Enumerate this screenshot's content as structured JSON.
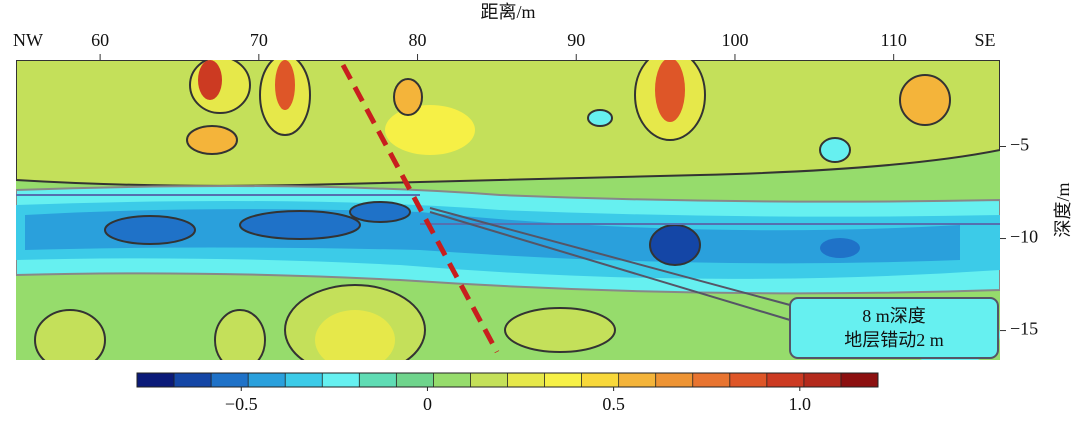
{
  "chart_data": {
    "type": "contour",
    "xlabel": "距离/m",
    "ylabel": "深度/m",
    "left_label": "NW",
    "right_label": "SE",
    "xlim": [
      54.7,
      116.7
    ],
    "xticks": [
      60,
      70,
      80,
      90,
      100,
      110
    ],
    "ylim": [
      -0.3,
      -16.6
    ],
    "yticks": [
      {
        "value": -5,
        "label": "−5"
      },
      {
        "value": -10,
        "label": "−10"
      },
      {
        "value": -15,
        "label": "−15"
      }
    ],
    "annotation": [
      "8 m深度",
      "地层错动2 m"
    ],
    "colorbar": {
      "lim": [
        -0.78,
        1.21
      ],
      "ticks": [
        {
          "value": -0.5,
          "label": "−0.5"
        },
        0,
        0.5,
        {
          "value": 1.0,
          "label": "1.0"
        }
      ],
      "colors": [
        "#0b1a78",
        "#1446a6",
        "#1f72c8",
        "#2aa0dc",
        "#3ccbe8",
        "#66f0f0",
        "#5fdcb4",
        "#6fd48c",
        "#96dc6c",
        "#c4e05a",
        "#e6e84a",
        "#f6f046",
        "#f8d83a",
        "#f4b43a",
        "#ee9434",
        "#e87430",
        "#de5628",
        "#cc3a22",
        "#b42a1c",
        "#8c1010"
      ]
    }
  }
}
